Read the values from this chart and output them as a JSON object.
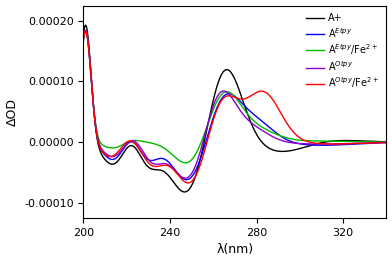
{
  "xlabel": "λ(nm)",
  "ylabel": "ΔOD",
  "xlim": [
    200,
    340
  ],
  "ylim": [
    -0.000125,
    0.000225
  ],
  "yticks": [
    -0.0001,
    0.0,
    0.0001,
    0.0002
  ],
  "xticks": [
    200,
    240,
    280,
    320
  ],
  "legend": [
    {
      "label": "A+",
      "color": "#000000"
    },
    {
      "label": "A$^{Etpy}$",
      "color": "#0000ff"
    },
    {
      "label": "A$^{Etpy}$/Fe$^{2+}$",
      "color": "#00bb00"
    },
    {
      "label": "A$^{Otpy}$",
      "color": "#8800cc"
    },
    {
      "label": "A$^{Otpy}$/Fe$^{2+}$",
      "color": "#ff0000"
    }
  ]
}
